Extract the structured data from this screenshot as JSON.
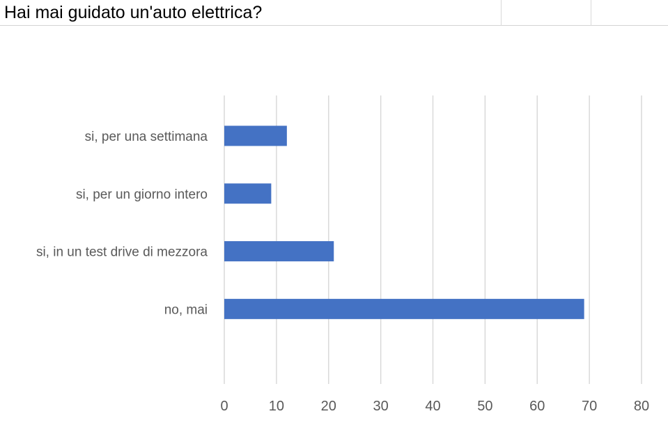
{
  "page": {
    "title": "Hai mai guidato un'auto elettrica?"
  },
  "chart_data": {
    "type": "bar",
    "orientation": "horizontal",
    "title": "",
    "xlabel": "",
    "ylabel": "",
    "categories": [
      "si, per una settimana",
      "si, per un giorno intero",
      "si, in un test drive di mezzora",
      "no, mai"
    ],
    "values": [
      12,
      9,
      21,
      69
    ],
    "xlim": [
      0,
      80
    ],
    "ticks": [
      0,
      10,
      20,
      30,
      40,
      50,
      60,
      70,
      80
    ],
    "grid": true,
    "legend": "none",
    "bar_color": "#4472c4",
    "grid_color": "#d9d9d9"
  }
}
